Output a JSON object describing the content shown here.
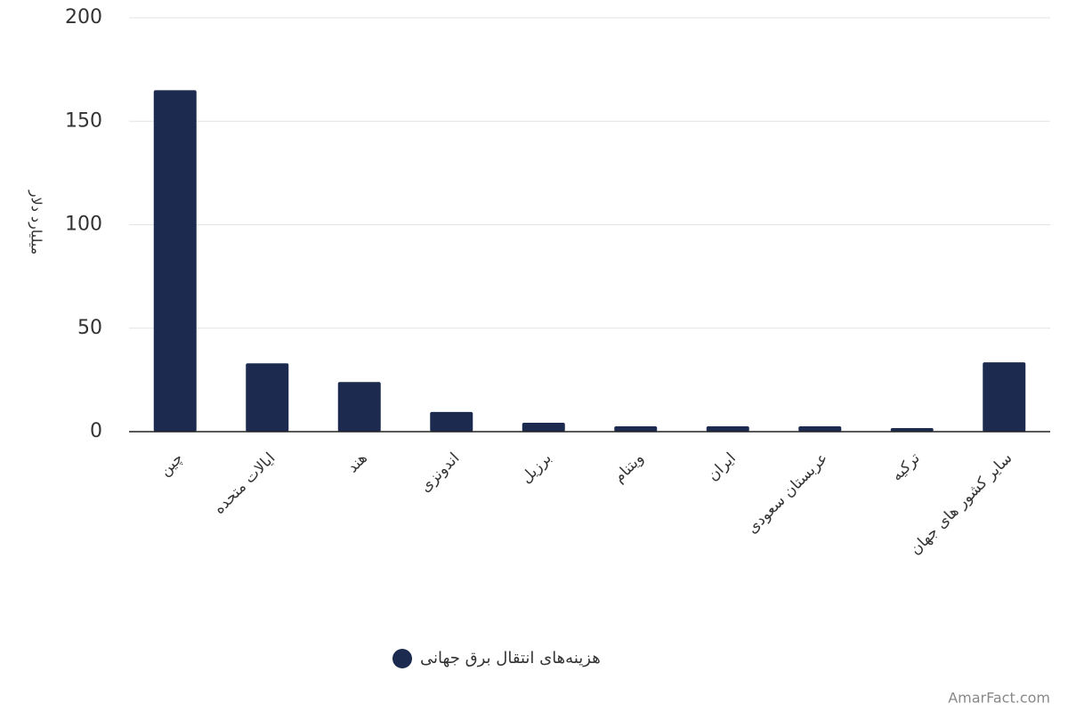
{
  "chart_data": {
    "type": "bar",
    "y_label": "میلیارد دلار",
    "categories": [
      "چین",
      "ایالات متحده",
      "هند",
      "اندونزی",
      "برزیل",
      "ویتنام",
      "ایران",
      "عربستان سعودی",
      "ترکیه",
      "سایر کشور های جهان"
    ],
    "series": [
      {
        "name": "هزینه‌های انتقال برق جهانی",
        "color": "#1b2a4e",
        "values": [
          165,
          33,
          24,
          9.5,
          4.3,
          2.6,
          2.6,
          2.6,
          1.7,
          33.5
        ]
      }
    ],
    "ylim": [
      0,
      200
    ],
    "yticks": [
      0,
      50,
      100,
      150,
      200
    ],
    "grid": true,
    "watermark": "AmarFact.com"
  }
}
